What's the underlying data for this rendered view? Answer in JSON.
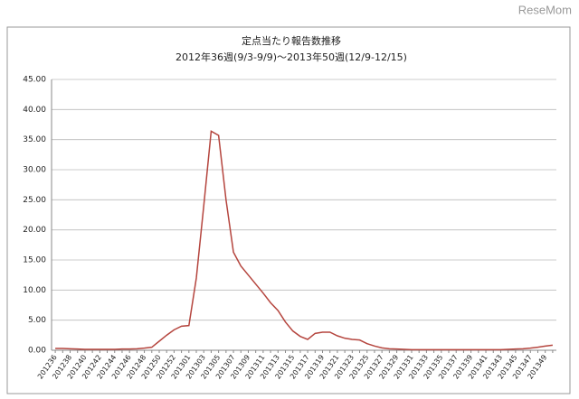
{
  "watermark": "ReseMom",
  "chart_data": {
    "type": "line",
    "title": "定点当たり報告数推移",
    "subtitle": "2012年36週(9/3-9/9)～2013年50週(12/9-12/15)",
    "categories": [
      "201236",
      null,
      "201238",
      null,
      "201240",
      null,
      "201242",
      null,
      "201244",
      null,
      "201246",
      null,
      "201248",
      null,
      "201250",
      null,
      "201252",
      null,
      "201301",
      null,
      "201303",
      null,
      "201305",
      null,
      "201307",
      null,
      "201309",
      null,
      "201311",
      null,
      "201313",
      null,
      "201315",
      null,
      "201317",
      null,
      "201319",
      null,
      "201321",
      null,
      "201323",
      null,
      "201325",
      null,
      "201327",
      null,
      "201329",
      null,
      "201331",
      null,
      "201333",
      null,
      "201335",
      null,
      "201337",
      null,
      "201339",
      null,
      "201341",
      null,
      "201343",
      null,
      "201345",
      null,
      "201347",
      null,
      "201349",
      null
    ],
    "series": [
      {
        "color": "#b5453e",
        "values": [
          0.3,
          0.3,
          0.25,
          0.2,
          0.15,
          0.15,
          0.15,
          0.15,
          0.15,
          0.2,
          0.2,
          0.25,
          0.35,
          0.5,
          1.5,
          2.5,
          3.4,
          4.0,
          4.1,
          12,
          24,
          36.4,
          35.7,
          25,
          16.3,
          14,
          12.5,
          11,
          9.5,
          7.9,
          6.6,
          4.7,
          3.2,
          2.3,
          1.8,
          2.8,
          3.0,
          3.0,
          2.4,
          2.0,
          1.8,
          1.7,
          1.1,
          0.7,
          0.4,
          0.25,
          0.2,
          0.15,
          0.1,
          0.1,
          0.1,
          0.1,
          0.1,
          0.1,
          0.1,
          0.1,
          0.1,
          0.1,
          0.1,
          0.1,
          0.1,
          0.15,
          0.2,
          0.25,
          0.35,
          0.5,
          0.7,
          0.85
        ]
      }
    ],
    "ylim": [
      0,
      45
    ],
    "yticks": [
      {
        "value": 0,
        "label": "0.00"
      },
      {
        "value": 5,
        "label": "5.00"
      },
      {
        "value": 10,
        "label": "10.00"
      },
      {
        "value": 15,
        "label": "15.00"
      },
      {
        "value": 20,
        "label": "20.00"
      },
      {
        "value": 25,
        "label": "25.00"
      },
      {
        "value": 30,
        "label": "30.00"
      },
      {
        "value": 35,
        "label": "35.00"
      },
      {
        "value": 40,
        "label": "40.00"
      },
      {
        "value": 45,
        "label": "45.00"
      }
    ],
    "grid": true
  }
}
